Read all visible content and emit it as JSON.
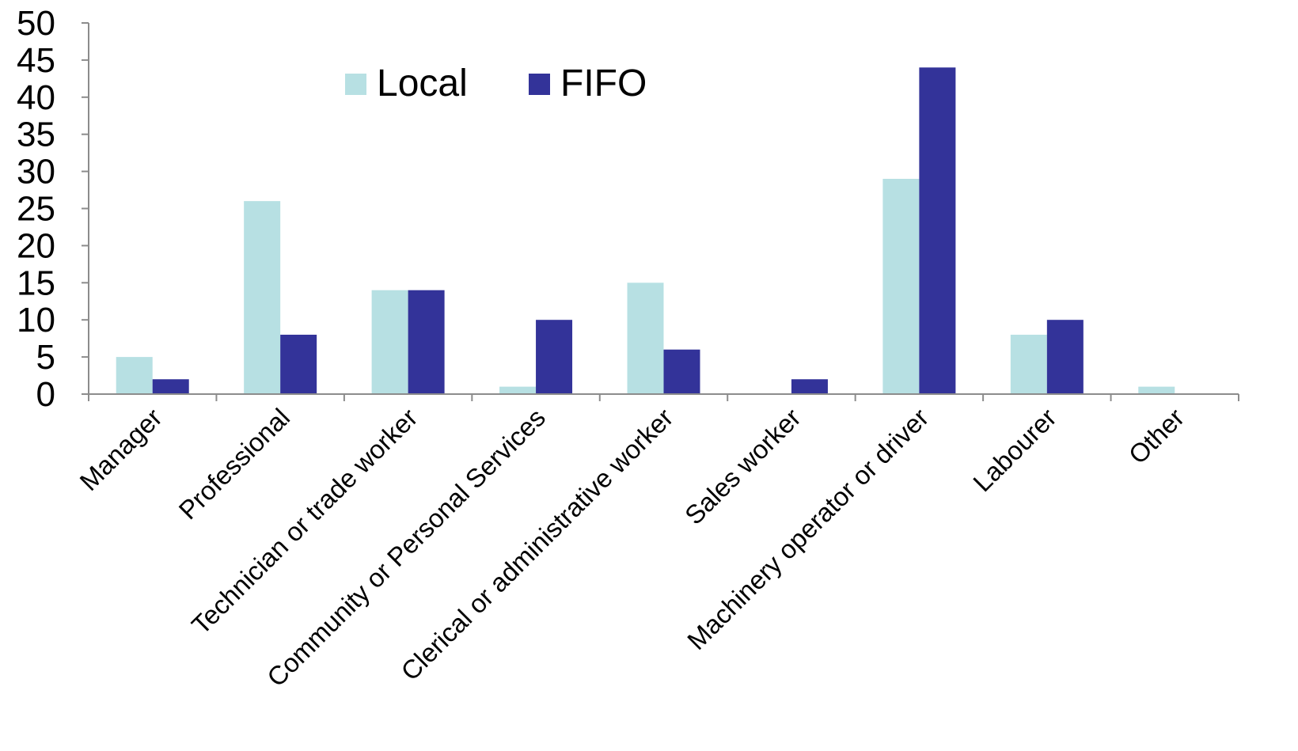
{
  "chart_data": {
    "type": "bar",
    "title": "",
    "xlabel": "",
    "ylabel": "",
    "ylim": [
      0,
      50
    ],
    "yticks": [
      0,
      5,
      10,
      15,
      20,
      25,
      30,
      35,
      40,
      45,
      50
    ],
    "grid": false,
    "legend_position": "top-left-inside",
    "categories": [
      "Manager",
      "Professional",
      "Technician or trade worker",
      "Community or Personal Services",
      "Clerical or administrative worker",
      "Sales worker",
      "Machinery operator or driver",
      "Labourer",
      "Other"
    ],
    "series": [
      {
        "name": "Local",
        "color": "#b7e0e3",
        "values": [
          5,
          26,
          14,
          1,
          15,
          0,
          29,
          8,
          1
        ]
      },
      {
        "name": "FIFO",
        "color": "#333399",
        "values": [
          2,
          8,
          14,
          10,
          6,
          2,
          44,
          10,
          0
        ]
      }
    ]
  }
}
